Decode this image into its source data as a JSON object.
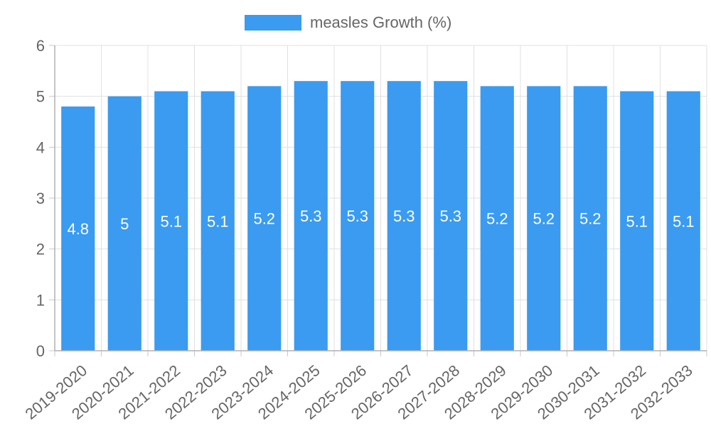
{
  "chart_data": {
    "type": "bar",
    "categories": [
      "2019-2020",
      "2020-2021",
      "2021-2022",
      "2022-2023",
      "2023-2024",
      "2024-2025",
      "2025-2026",
      "2026-2027",
      "2027-2028",
      "2028-2029",
      "2029-2030",
      "2030-2031",
      "2031-2032",
      "2032-2033"
    ],
    "series": [
      {
        "name": "measles Growth (%)",
        "values": [
          4.8,
          5,
          5.1,
          5.1,
          5.2,
          5.3,
          5.3,
          5.3,
          5.3,
          5.2,
          5.2,
          5.2,
          5.1,
          5.1
        ],
        "color": "#3a9bf0"
      }
    ],
    "ylim": [
      0,
      6
    ],
    "yticks": [
      0,
      1,
      2,
      3,
      4,
      5,
      6
    ],
    "grid": true,
    "legend_position": "top-center",
    "data_labels": true
  }
}
